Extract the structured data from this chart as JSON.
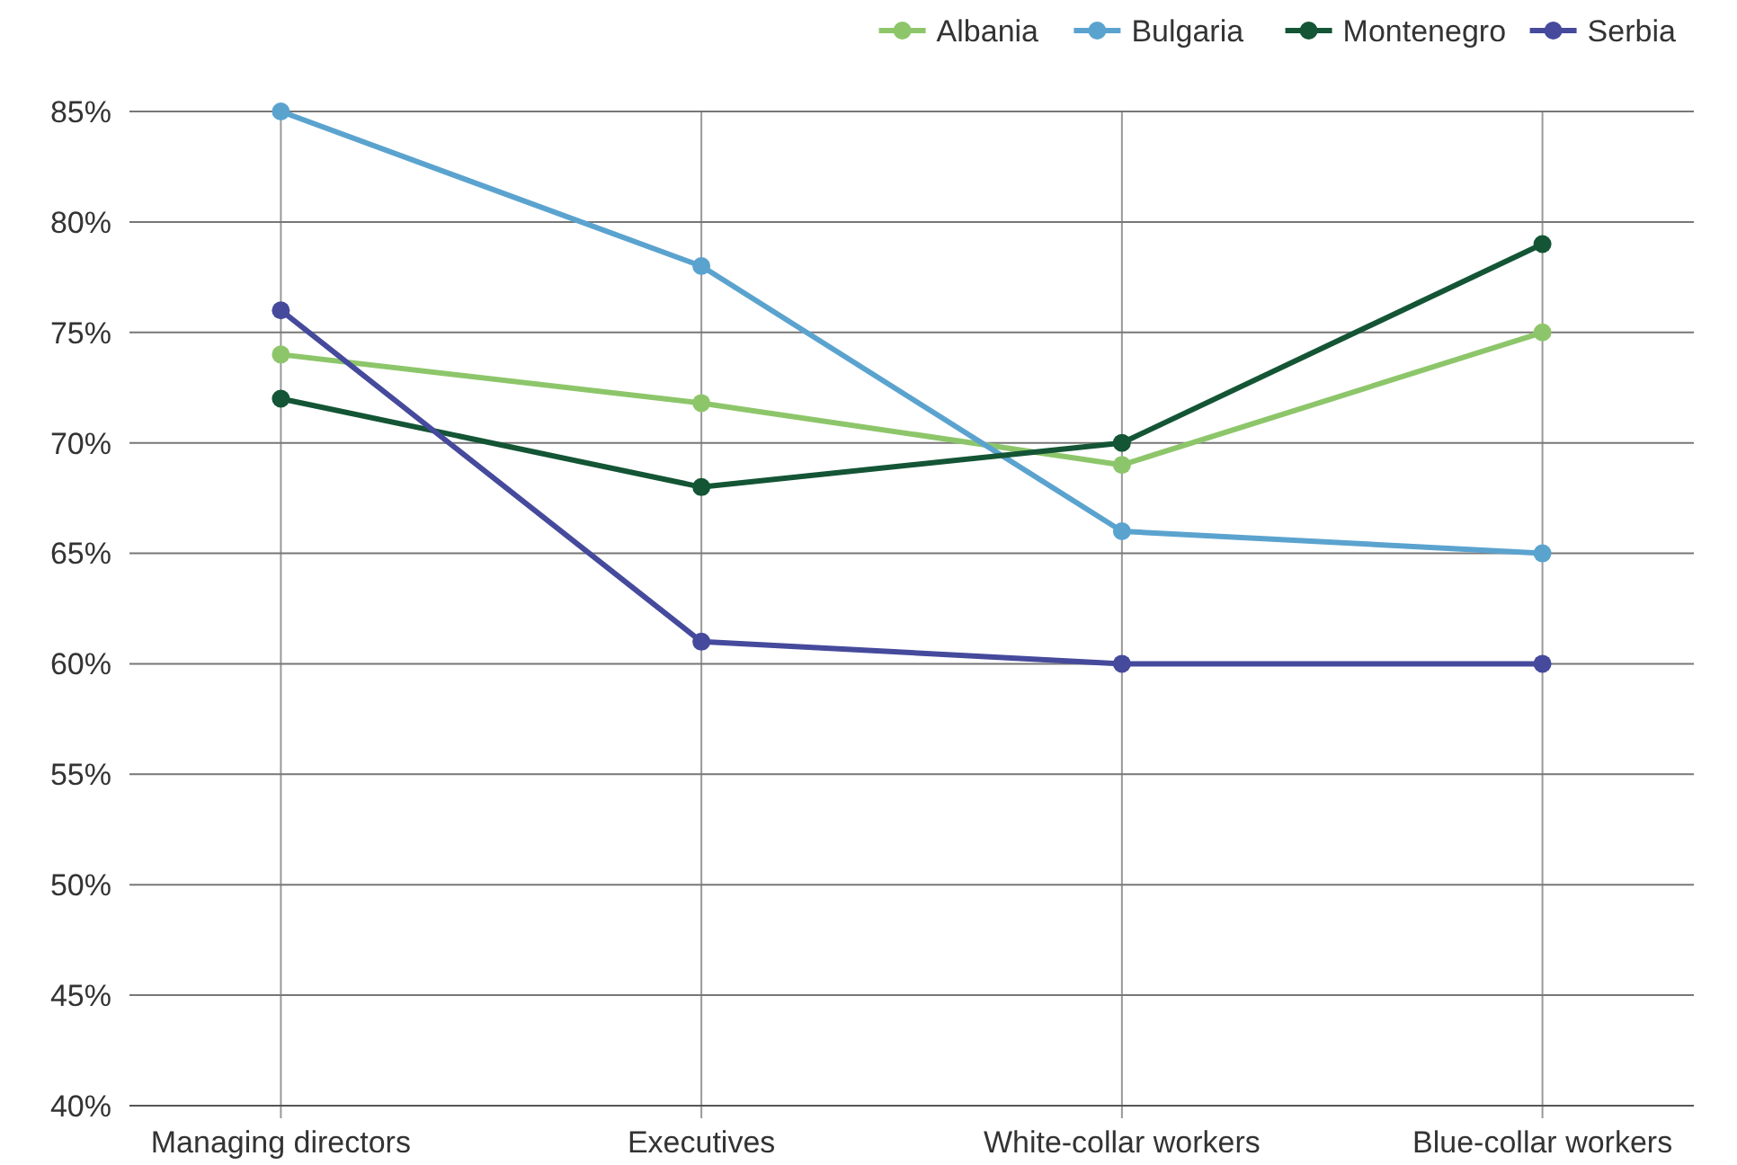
{
  "chart_data": {
    "type": "line",
    "categories": [
      "Managing directors",
      "Executives",
      "White-collar workers",
      "Blue-collar workers"
    ],
    "series": [
      {
        "name": "Albania",
        "color": "#8dc66a",
        "values": [
          74,
          71.8,
          69,
          75
        ]
      },
      {
        "name": "Bulgaria",
        "color": "#5ba3cf",
        "values": [
          85,
          78,
          66,
          65
        ]
      },
      {
        "name": "Montenegro",
        "color": "#135535",
        "values": [
          72,
          68,
          70,
          79
        ]
      },
      {
        "name": "Serbia",
        "color": "#454a9c",
        "values": [
          76,
          61,
          60,
          60
        ]
      }
    ],
    "ylim": [
      40,
      85
    ],
    "yticks": [
      {
        "value": 40,
        "label": "40%"
      },
      {
        "value": 45,
        "label": "45%"
      },
      {
        "value": 50,
        "label": "50%"
      },
      {
        "value": 55,
        "label": "55%"
      },
      {
        "value": 60,
        "label": "60%"
      },
      {
        "value": 65,
        "label": "65%"
      },
      {
        "value": 70,
        "label": "70%"
      },
      {
        "value": 75,
        "label": "75%"
      },
      {
        "value": 80,
        "label": "80%"
      },
      {
        "value": 85,
        "label": "85%"
      }
    ],
    "grid": true,
    "legend": "top right",
    "marker": "circle",
    "line_style": "solid"
  }
}
